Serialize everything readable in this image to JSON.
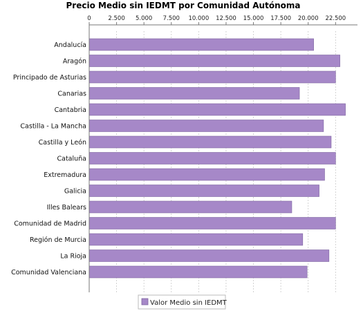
{
  "chart_data": {
    "type": "bar",
    "orientation": "horizontal",
    "title": "Precio Medio sin IEDMT por Comunidad Autónoma",
    "categories": [
      "Andalucía",
      "Aragón",
      "Principado de Asturias",
      "Canarias",
      "Cantabria",
      "Castilla - La Mancha",
      "Castilla y León",
      "Cataluña",
      "Extremadura",
      "Galicia",
      "Illes Balears",
      "Comunidad de Madrid",
      "Región de Murcia",
      "La Rioja",
      "Comunidad Valenciana"
    ],
    "series": [
      {
        "name": "Valor Medio sin IEDMT",
        "color": "#a688c8",
        "values": [
          20500,
          22900,
          22500,
          19200,
          23400,
          21400,
          22100,
          22500,
          21500,
          21000,
          18500,
          22500,
          19500,
          21900,
          19900
        ]
      }
    ],
    "x_ticks": [
      "0",
      "2.500",
      "5.000",
      "7.500",
      "10.000",
      "12.500",
      "15.000",
      "17.500",
      "20.000",
      "22.500"
    ],
    "x_tick_values": [
      0,
      2500,
      5000,
      7500,
      10000,
      12500,
      15000,
      17500,
      20000,
      22500
    ],
    "xlim": [
      0,
      24500
    ],
    "xaxis_position": "top",
    "grid": true,
    "legend_position": "bottom"
  }
}
